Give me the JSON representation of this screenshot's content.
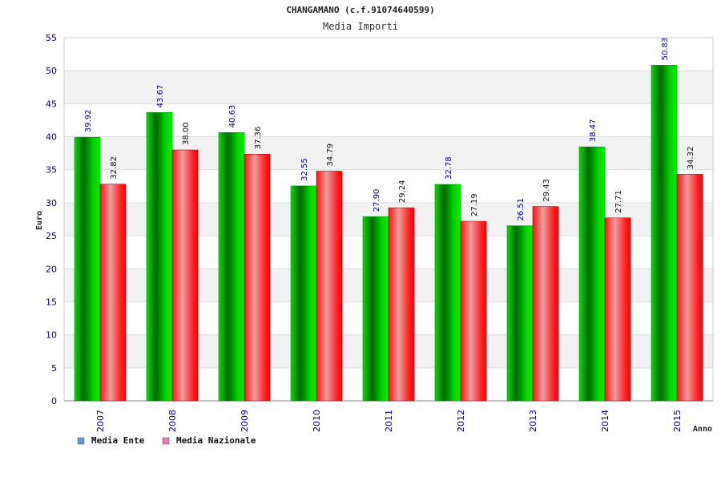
{
  "chart_data": {
    "type": "bar",
    "title": "CHANGAMANO (c.f.91074640599)",
    "subtitle": "Media Importi",
    "xlabel": "Anno",
    "ylabel": "Euro",
    "ylim": [
      0,
      55
    ],
    "ytick_step": 5,
    "grid": true,
    "legend_position": "bottom-left",
    "categories": [
      "2007",
      "2008",
      "2009",
      "2010",
      "2011",
      "2012",
      "2013",
      "2014",
      "2015"
    ],
    "series": [
      {
        "name": "Media Ente",
        "color": "#00cc00",
        "values": [
          39.92,
          43.67,
          40.63,
          32.55,
          27.9,
          32.78,
          26.51,
          38.47,
          50.83
        ]
      },
      {
        "name": "Media Nazionale",
        "color": "#ff2020",
        "values": [
          32.82,
          38.0,
          37.36,
          34.79,
          29.24,
          27.19,
          29.43,
          27.71,
          34.32
        ]
      }
    ],
    "legend": [
      {
        "label": "Media Ente",
        "swatch_color": "#5b9bd5"
      },
      {
        "label": "Media Nazionale",
        "swatch_color": "#e07fb0"
      }
    ]
  }
}
